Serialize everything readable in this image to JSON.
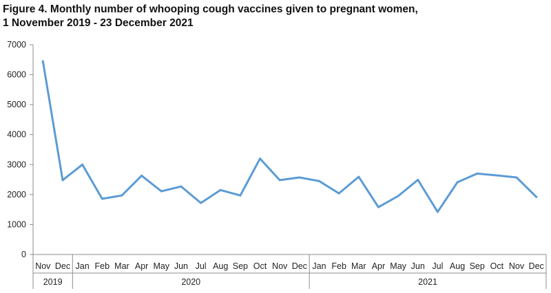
{
  "chart_data": {
    "type": "line",
    "title": "Figure 4. Monthly number of whooping cough vaccines given to pregnant women,",
    "subtitle": "1 November 2019 - 23 December 2021",
    "xlabel": "",
    "ylabel": "",
    "ylim": [
      0,
      7000
    ],
    "yticks": [
      0,
      1000,
      2000,
      3000,
      4000,
      5000,
      6000,
      7000
    ],
    "grid": false,
    "legend": "none",
    "line_color": "#5B9BD5",
    "categories": [
      "Nov",
      "Dec",
      "Jan",
      "Feb",
      "Mar",
      "Apr",
      "May",
      "Jun",
      "Jul",
      "Aug",
      "Sep",
      "Oct",
      "Nov",
      "Dec",
      "Jan",
      "Feb",
      "Mar",
      "Apr",
      "May",
      "Jun",
      "Jul",
      "Aug",
      "Sep",
      "Oct",
      "Nov",
      "Dec"
    ],
    "year_groups": [
      {
        "label": "2019",
        "start": 0,
        "end": 1
      },
      {
        "label": "2020",
        "start": 2,
        "end": 13
      },
      {
        "label": "2021",
        "start": 14,
        "end": 25
      }
    ],
    "series": [
      {
        "values": [
          6450,
          2480,
          3000,
          1860,
          1970,
          2630,
          2110,
          2270,
          1720,
          2150,
          1970,
          3200,
          2480,
          2570,
          2450,
          2040,
          2590,
          1580,
          1950,
          2490,
          1420,
          2410,
          2700,
          2640,
          2570,
          1920
        ]
      }
    ]
  }
}
